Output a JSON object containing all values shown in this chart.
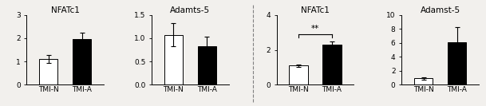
{
  "panels": [
    {
      "title": "NFATc1",
      "bars": [
        {
          "label": "TMI-N",
          "value": 1.1,
          "error": 0.18,
          "color": "white"
        },
        {
          "label": "TMI-A",
          "value": 1.95,
          "error": 0.28,
          "color": "black"
        }
      ],
      "ylim": [
        0,
        3
      ],
      "yticks": [
        0,
        1,
        2,
        3
      ],
      "significance": null
    },
    {
      "title": "Adamts-5",
      "bars": [
        {
          "label": "TMI-N",
          "value": 1.07,
          "error": 0.25,
          "color": "white"
        },
        {
          "label": "TMI-A",
          "value": 0.82,
          "error": 0.22,
          "color": "black"
        }
      ],
      "ylim": [
        0,
        1.5
      ],
      "yticks": [
        0,
        0.5,
        1.0,
        1.5
      ],
      "significance": null
    },
    {
      "title": "NFATc1",
      "bars": [
        {
          "label": "TMI-N",
          "value": 1.1,
          "error": 0.07,
          "color": "white"
        },
        {
          "label": "TMI-A",
          "value": 2.3,
          "error": 0.18,
          "color": "black"
        }
      ],
      "ylim": [
        0,
        4
      ],
      "yticks": [
        0,
        2,
        4
      ],
      "significance": "**"
    },
    {
      "title": "Adamst-5",
      "bars": [
        {
          "label": "TMI-N",
          "value": 0.9,
          "error": 0.12,
          "color": "white"
        },
        {
          "label": "TMI-A",
          "value": 6.1,
          "error": 2.1,
          "color": "black"
        }
      ],
      "ylim": [
        0,
        10
      ],
      "yticks": [
        0,
        2,
        4,
        6,
        8,
        10
      ],
      "significance": null
    }
  ],
  "divider_after": 1,
  "bar_width": 0.55,
  "bg_color": "#f2f0ed",
  "edgecolor": "black",
  "fontsize_title": 7.5,
  "fontsize_ticks": 6.5,
  "fontsize_xlabel": 6.5
}
